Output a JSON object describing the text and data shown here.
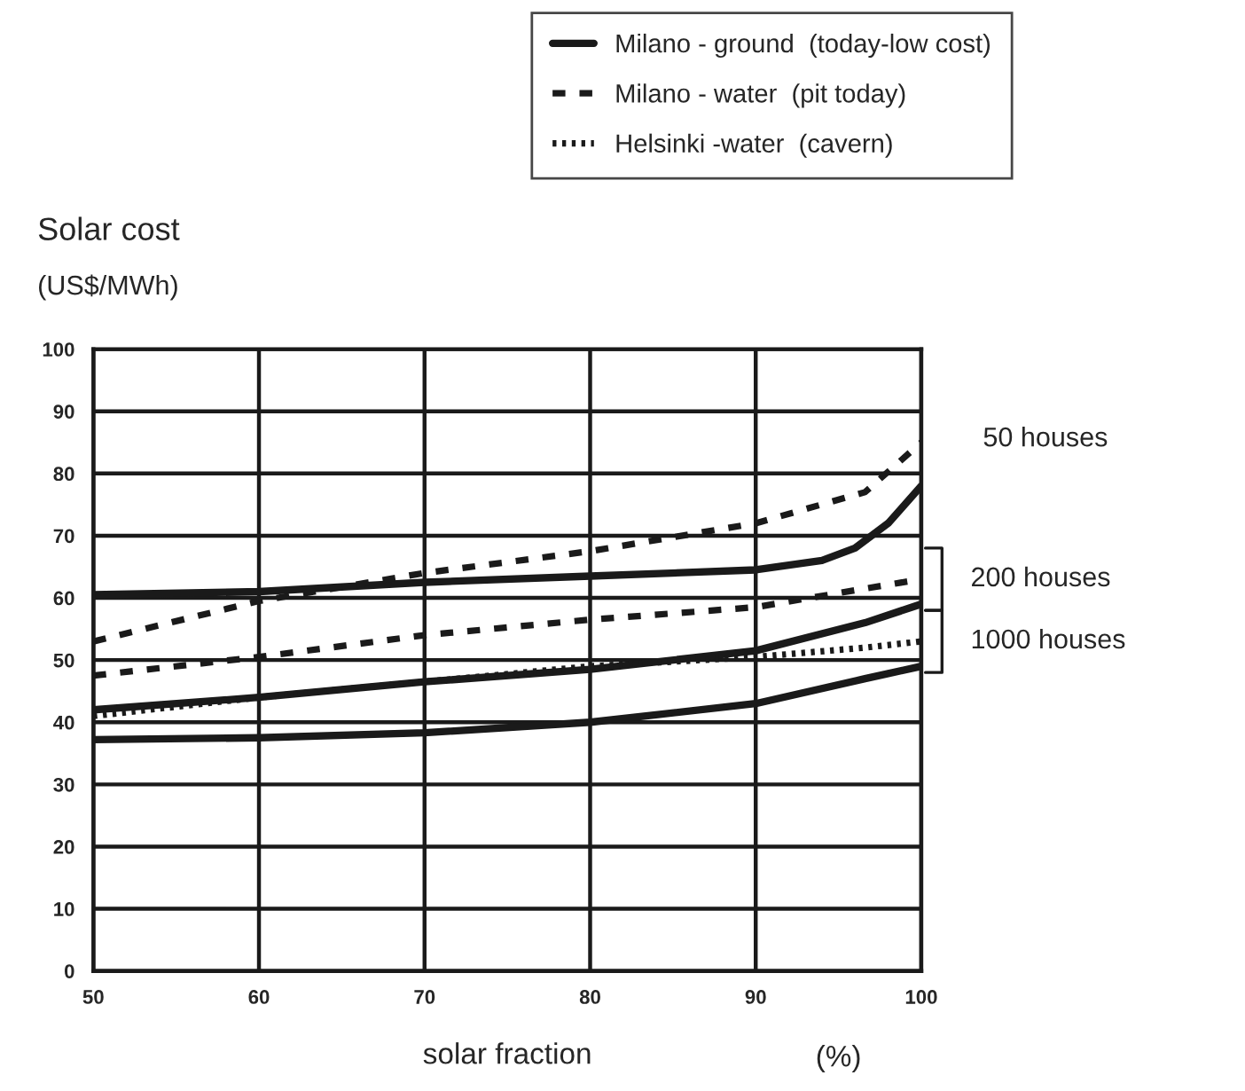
{
  "chart_data": {
    "type": "line",
    "ylabel": "Solar cost\n(US$/MWh)",
    "xlabel": "solar fraction",
    "xlim": [
      50,
      100
    ],
    "xticks": [
      50,
      60,
      70,
      80,
      90,
      100
    ],
    "ylim": [
      0,
      100
    ],
    "yticks": [
      0,
      10,
      20,
      30,
      40,
      50,
      60,
      70,
      80,
      90,
      100
    ],
    "grid": true,
    "legend": "top",
    "marker": "none",
    "series": [
      {
        "name": "Milano - ground  (today-low cost)",
        "color": "#1a1a1a",
        "line_style": "solid",
        "x": [
          50,
          60,
          70,
          80,
          90,
          94,
          96,
          98,
          100
        ],
        "values": [
          60.5,
          61,
          62.5,
          63.5,
          64.5,
          66,
          68,
          72,
          78
        ]
      },
      {
        "color": "#1a1a1a",
        "line_style": "solid",
        "x": [
          50,
          60,
          70,
          80,
          90,
          96.6,
          100
        ],
        "values": [
          42,
          44,
          46.5,
          48.5,
          51.5,
          56,
          59
        ]
      },
      {
        "color": "#1a1a1a",
        "line_style": "solid",
        "x": [
          50,
          60,
          70,
          80,
          90,
          96.6,
          100
        ],
        "values": [
          37.2,
          37.5,
          38.3,
          40,
          43,
          47,
          49
        ]
      },
      {
        "name": "Milano - water  (pit today)",
        "color": "#1a1a1a",
        "line_style": "dashed",
        "x": [
          50,
          60,
          70,
          80,
          90,
          96.6,
          100
        ],
        "values": [
          53,
          59.5,
          64,
          67.5,
          72,
          77,
          85
        ]
      },
      {
        "color": "#1a1a1a",
        "line_style": "dashed",
        "x": [
          50,
          60,
          70,
          80,
          90,
          96.6,
          100
        ],
        "values": [
          47.5,
          50.5,
          54,
          56.5,
          58.5,
          61.5,
          63
        ]
      },
      {
        "name": "Helsinki -water  (cavern)",
        "color": "#1a1a1a",
        "line_style": "dotted",
        "x": [
          50,
          60,
          70,
          80,
          90,
          96.6,
          100
        ],
        "values": [
          41,
          44,
          46.5,
          49,
          50.5,
          52,
          53
        ]
      }
    ],
    "annotations": [
      "50 houses",
      "200 houses",
      "1000 houses",
      "(%)"
    ]
  }
}
